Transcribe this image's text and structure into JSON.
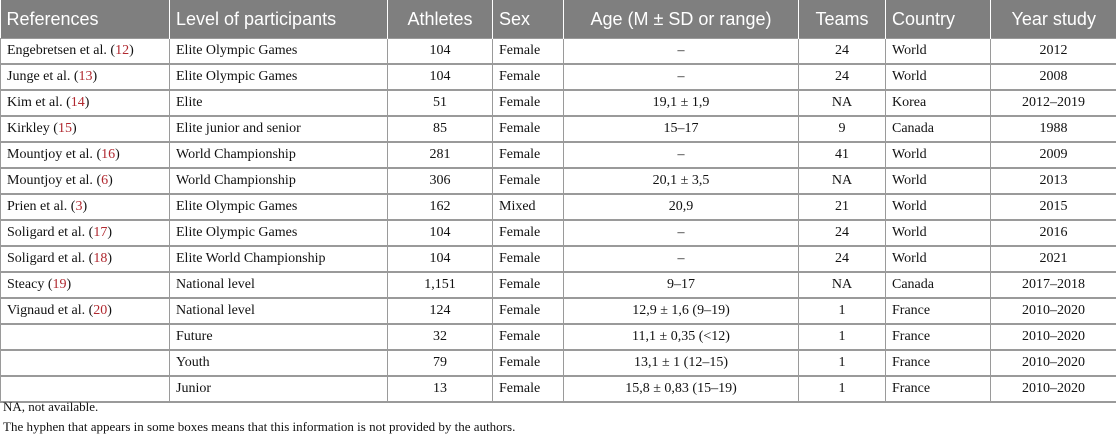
{
  "columns": [
    "References",
    "Level of participants",
    "Athletes",
    "Sex",
    "Age (M ± SD or range)",
    "Teams",
    "Country",
    "Year study"
  ],
  "rows": [
    {
      "author": "Engebretsen et al.",
      "cite": "12",
      "level": "Elite Olympic Games",
      "athletes": "104",
      "sex": "Female",
      "age": "–",
      "teams": "24",
      "country": "World",
      "year": "2012"
    },
    {
      "author": "Junge et al.",
      "cite": "13",
      "level": "Elite Olympic Games",
      "athletes": "104",
      "sex": "Female",
      "age": "–",
      "teams": "24",
      "country": "World",
      "year": "2008"
    },
    {
      "author": "Kim et al.",
      "cite": "14",
      "level": "Elite",
      "athletes": "51",
      "sex": "Female",
      "age": "19,1 ± 1,9",
      "teams": "NA",
      "country": "Korea",
      "year": "2012–2019"
    },
    {
      "author": "Kirkley",
      "cite": "15",
      "level": "Elite junior and senior",
      "athletes": "85",
      "sex": "Female",
      "age": "15–17",
      "teams": "9",
      "country": "Canada",
      "year": "1988"
    },
    {
      "author": "Mountjoy et al.",
      "cite": "16",
      "level": "World Championship",
      "athletes": "281",
      "sex": "Female",
      "age": "–",
      "teams": "41",
      "country": "World",
      "year": "2009"
    },
    {
      "author": "Mountjoy et al.",
      "cite": "6",
      "level": "World Championship",
      "athletes": "306",
      "sex": "Female",
      "age": "20,1 ± 3,5",
      "teams": "NA",
      "country": "World",
      "year": "2013"
    },
    {
      "author": "Prien et al.",
      "cite": "3",
      "level": "Elite Olympic Games",
      "athletes": "162",
      "sex": "Mixed",
      "age": "20,9",
      "teams": "21",
      "country": "World",
      "year": "2015"
    },
    {
      "author": "Soligard et al.",
      "cite": "17",
      "level": "Elite Olympic Games",
      "athletes": "104",
      "sex": "Female",
      "age": "–",
      "teams": "24",
      "country": "World",
      "year": "2016"
    },
    {
      "author": "Soligard et al.",
      "cite": "18",
      "level": "Elite World Championship",
      "athletes": "104",
      "sex": "Female",
      "age": "–",
      "teams": "24",
      "country": "World",
      "year": "2021"
    },
    {
      "author": "Steacy",
      "cite": "19",
      "level": "National level",
      "athletes": "1,151",
      "sex": "Female",
      "age": "9–17",
      "teams": "NA",
      "country": "Canada",
      "year": "2017–2018"
    },
    {
      "author": "Vignaud et al.",
      "cite": "20",
      "level": "National level",
      "athletes": "124",
      "sex": "Female",
      "age": "12,9 ± 1,6 (9–19)",
      "teams": "1",
      "country": "France",
      "year": "2010–2020"
    },
    {
      "author": "",
      "cite": "",
      "level": "Future",
      "athletes": "32",
      "sex": "Female",
      "age": "11,1 ± 0,35 (<12)",
      "teams": "1",
      "country": "France",
      "year": "2010–2020"
    },
    {
      "author": "",
      "cite": "",
      "level": "Youth",
      "athletes": "79",
      "sex": "Female",
      "age": "13,1 ± 1 (12–15)",
      "teams": "1",
      "country": "France",
      "year": "2010–2020"
    },
    {
      "author": "",
      "cite": "",
      "level": "Junior",
      "athletes": "13",
      "sex": "Female",
      "age": "15,8 ± 0,83 (15–19)",
      "teams": "1",
      "country": "France",
      "year": "2010–2020"
    }
  ],
  "footnotes": [
    "NA, not available.",
    "The hyphen that appears in some boxes means that this information is not provided by the authors."
  ],
  "colors": {
    "header_bg": "#7f7f7f",
    "header_text": "#ffffff",
    "citation": "#b0282f",
    "grid": "#9a9a9a"
  }
}
